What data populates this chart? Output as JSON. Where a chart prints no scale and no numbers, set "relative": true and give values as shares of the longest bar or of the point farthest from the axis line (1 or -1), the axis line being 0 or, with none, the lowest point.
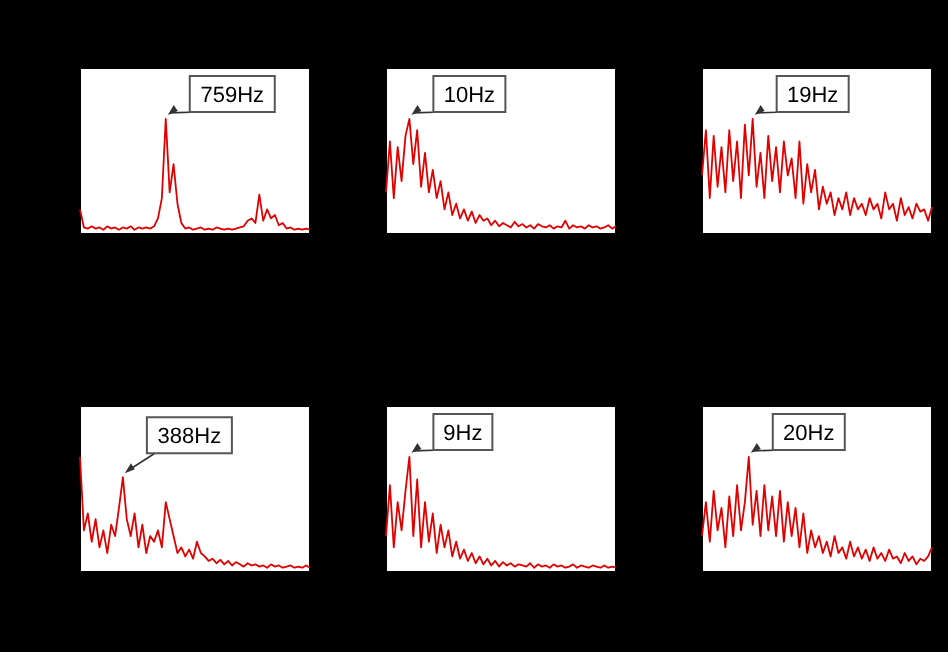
{
  "chart_data": [
    {
      "type": "line",
      "relative": true,
      "categories": [
        null,
        null,
        null,
        null,
        null,
        null,
        null,
        null,
        null,
        null,
        null,
        null,
        null,
        null,
        null,
        null,
        null,
        null,
        null,
        null,
        null,
        null,
        null,
        null,
        null,
        null,
        null,
        null,
        null,
        null,
        null,
        null,
        null,
        null,
        null,
        null,
        null,
        null,
        null,
        null,
        null,
        null,
        null,
        null,
        null,
        null,
        null,
        null,
        null,
        null,
        null,
        null,
        null,
        null,
        null,
        null,
        null,
        null,
        null,
        null
      ],
      "series": [
        {
          "color": "#e00000",
          "values": [
            0.2,
            0.04,
            0.03,
            0.05,
            0.03,
            0.04,
            0.02,
            0.05,
            0.03,
            0.04,
            0.02,
            0.04,
            0.03,
            0.05,
            0.02,
            0.04,
            0.03,
            0.04,
            0.03,
            0.05,
            0.12,
            0.3,
            1,
            0.35,
            0.6,
            0.25,
            0.08,
            0.03,
            0.04,
            0.02,
            0.03,
            0.04,
            0.02,
            0.03,
            0.02,
            0.04,
            0.03,
            0.02,
            0.03,
            0.02,
            0.03,
            0.04,
            0.05,
            0.1,
            0.12,
            0.08,
            0.33,
            0.1,
            0.2,
            0.12,
            0.15,
            0.06,
            0.08,
            0.03,
            0.04,
            0.02,
            0.03,
            0.02,
            0.03,
            0.02
          ]
        }
      ],
      "annotations": [
        "759Hz"
      ]
    },
    {
      "type": "line",
      "relative": true,
      "categories": [
        null,
        null,
        null,
        null,
        null,
        null,
        null,
        null,
        null,
        null,
        null,
        null,
        null,
        null,
        null,
        null,
        null,
        null,
        null,
        null,
        null,
        null,
        null,
        null,
        null,
        null,
        null,
        null,
        null,
        null,
        null,
        null,
        null,
        null,
        null,
        null,
        null,
        null,
        null,
        null,
        null,
        null,
        null,
        null,
        null,
        null,
        null,
        null,
        null,
        null,
        null,
        null,
        null,
        null,
        null,
        null,
        null,
        null,
        null,
        null
      ],
      "series": [
        {
          "color": "#e00000",
          "values": [
            0.35,
            0.8,
            0.3,
            0.75,
            0.45,
            0.85,
            1,
            0.6,
            0.9,
            0.4,
            0.7,
            0.35,
            0.55,
            0.3,
            0.45,
            0.2,
            0.35,
            0.15,
            0.25,
            0.12,
            0.2,
            0.1,
            0.18,
            0.08,
            0.15,
            0.1,
            0.12,
            0.06,
            0.1,
            0.05,
            0.08,
            0.06,
            0.04,
            0.09,
            0.05,
            0.07,
            0.04,
            0.06,
            0.03,
            0.07,
            0.05,
            0.04,
            0.06,
            0.03,
            0.05,
            0.04,
            0.1,
            0.03,
            0.06,
            0.04,
            0.05,
            0.03,
            0.06,
            0.04,
            0.05,
            0.03,
            0.04,
            0.06,
            0.03,
            0.05
          ]
        }
      ],
      "annotations": [
        "10Hz"
      ]
    },
    {
      "type": "line",
      "relative": true,
      "categories": [
        null,
        null,
        null,
        null,
        null,
        null,
        null,
        null,
        null,
        null,
        null,
        null,
        null,
        null,
        null,
        null,
        null,
        null,
        null,
        null,
        null,
        null,
        null,
        null,
        null,
        null,
        null,
        null,
        null,
        null,
        null,
        null,
        null,
        null,
        null,
        null,
        null,
        null,
        null,
        null,
        null,
        null,
        null,
        null,
        null,
        null,
        null,
        null,
        null,
        null,
        null,
        null,
        null,
        null,
        null,
        null,
        null,
        null,
        null,
        null
      ],
      "series": [
        {
          "color": "#e00000",
          "values": [
            0.5,
            0.9,
            0.3,
            0.85,
            0.4,
            0.75,
            0.35,
            0.9,
            0.45,
            0.8,
            0.3,
            0.95,
            0.5,
            1,
            0.4,
            0.7,
            0.3,
            0.85,
            0.45,
            0.75,
            0.35,
            0.8,
            0.5,
            0.65,
            0.3,
            0.8,
            0.25,
            0.6,
            0.35,
            0.55,
            0.2,
            0.4,
            0.25,
            0.35,
            0.15,
            0.3,
            0.2,
            0.35,
            0.15,
            0.3,
            0.2,
            0.25,
            0.15,
            0.3,
            0.2,
            0.25,
            0.12,
            0.35,
            0.2,
            0.25,
            0.1,
            0.3,
            0.15,
            0.22,
            0.12,
            0.25,
            0.18,
            0.2,
            0.1,
            0.22
          ]
        }
      ],
      "annotations": [
        "19Hz"
      ]
    },
    {
      "type": "line",
      "relative": true,
      "categories": [
        null,
        null,
        null,
        null,
        null,
        null,
        null,
        null,
        null,
        null,
        null,
        null,
        null,
        null,
        null,
        null,
        null,
        null,
        null,
        null,
        null,
        null,
        null,
        null,
        null,
        null,
        null,
        null,
        null,
        null,
        null,
        null,
        null,
        null,
        null,
        null,
        null,
        null,
        null,
        null,
        null,
        null,
        null,
        null,
        null,
        null,
        null,
        null,
        null,
        null,
        null,
        null,
        null,
        null,
        null,
        null,
        null,
        null,
        null,
        null
      ],
      "series": [
        {
          "color": "#e00000",
          "values": [
            1,
            0.35,
            0.5,
            0.25,
            0.45,
            0.2,
            0.35,
            0.15,
            0.4,
            0.3,
            0.55,
            0.82,
            0.45,
            0.3,
            0.5,
            0.2,
            0.4,
            0.15,
            0.3,
            0.25,
            0.35,
            0.2,
            0.6,
            0.45,
            0.3,
            0.15,
            0.2,
            0.12,
            0.18,
            0.1,
            0.25,
            0.15,
            0.12,
            0.08,
            0.1,
            0.06,
            0.09,
            0.05,
            0.08,
            0.04,
            0.07,
            0.05,
            0.03,
            0.06,
            0.04,
            0.05,
            0.03,
            0.04,
            0.02,
            0.05,
            0.03,
            0.04,
            0.02,
            0.03,
            0.04,
            0.02,
            0.03,
            0.02,
            0.04,
            0.02
          ]
        }
      ],
      "annotations": [
        "388Hz"
      ]
    },
    {
      "type": "line",
      "relative": true,
      "categories": [
        null,
        null,
        null,
        null,
        null,
        null,
        null,
        null,
        null,
        null,
        null,
        null,
        null,
        null,
        null,
        null,
        null,
        null,
        null,
        null,
        null,
        null,
        null,
        null,
        null,
        null,
        null,
        null,
        null,
        null,
        null,
        null,
        null,
        null,
        null,
        null,
        null,
        null,
        null,
        null,
        null,
        null,
        null,
        null,
        null,
        null,
        null,
        null,
        null,
        null,
        null,
        null,
        null,
        null,
        null,
        null,
        null,
        null,
        null,
        null
      ],
      "series": [
        {
          "color": "#e00000",
          "values": [
            0.3,
            0.75,
            0.2,
            0.6,
            0.35,
            0.7,
            1,
            0.3,
            0.8,
            0.2,
            0.6,
            0.25,
            0.5,
            0.15,
            0.4,
            0.2,
            0.35,
            0.12,
            0.25,
            0.1,
            0.18,
            0.08,
            0.15,
            0.06,
            0.12,
            0.05,
            0.1,
            0.04,
            0.08,
            0.03,
            0.07,
            0.04,
            0.06,
            0.03,
            0.05,
            0.04,
            0.03,
            0.06,
            0.02,
            0.05,
            0.03,
            0.04,
            0.02,
            0.05,
            0.03,
            0.04,
            0.02,
            0.03,
            0.05,
            0.02,
            0.04,
            0.03,
            0.02,
            0.04,
            0.03,
            0.02,
            0.04,
            0.02,
            0.03,
            0.02
          ]
        }
      ],
      "annotations": [
        "9Hz"
      ]
    },
    {
      "type": "line",
      "relative": true,
      "categories": [
        null,
        null,
        null,
        null,
        null,
        null,
        null,
        null,
        null,
        null,
        null,
        null,
        null,
        null,
        null,
        null,
        null,
        null,
        null,
        null,
        null,
        null,
        null,
        null,
        null,
        null,
        null,
        null,
        null,
        null,
        null,
        null,
        null,
        null,
        null,
        null,
        null,
        null,
        null,
        null,
        null,
        null,
        null,
        null,
        null,
        null,
        null,
        null,
        null,
        null,
        null,
        null,
        null,
        null,
        null,
        null,
        null,
        null,
        null,
        null
      ],
      "series": [
        {
          "color": "#e00000",
          "values": [
            0.3,
            0.6,
            0.25,
            0.7,
            0.35,
            0.55,
            0.2,
            0.65,
            0.3,
            0.75,
            0.35,
            0.6,
            1,
            0.4,
            0.7,
            0.3,
            0.75,
            0.35,
            0.65,
            0.3,
            0.7,
            0.25,
            0.6,
            0.3,
            0.55,
            0.2,
            0.5,
            0.15,
            0.35,
            0.2,
            0.3,
            0.15,
            0.25,
            0.12,
            0.3,
            0.15,
            0.2,
            0.1,
            0.25,
            0.12,
            0.2,
            0.1,
            0.18,
            0.08,
            0.2,
            0.1,
            0.15,
            0.08,
            0.18,
            0.1,
            0.12,
            0.06,
            0.15,
            0.08,
            0.12,
            0.05,
            0.1,
            0.08,
            0.12,
            0.2
          ]
        }
      ],
      "annotations": [
        "20Hz"
      ]
    }
  ]
}
